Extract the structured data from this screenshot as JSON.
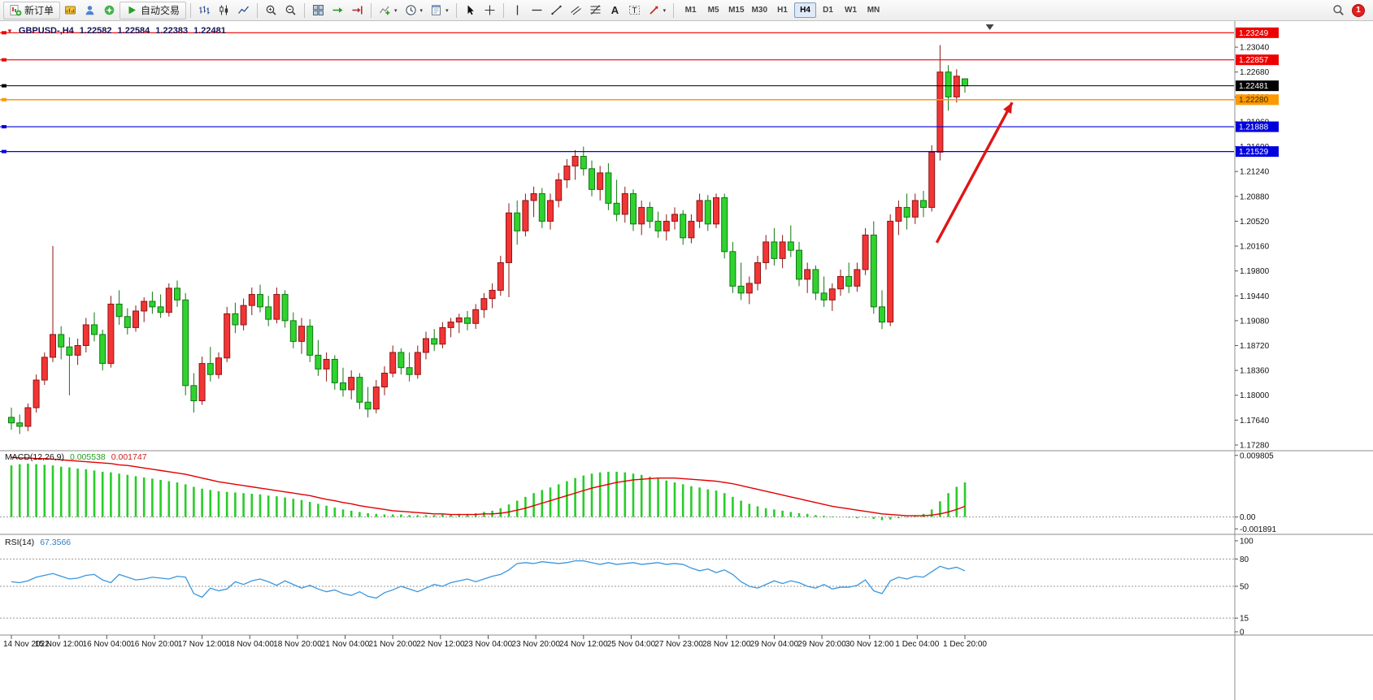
{
  "toolbar": {
    "new_order_label": "新订单",
    "auto_trading_label": "自动交易",
    "timeframes": [
      "M1",
      "M5",
      "M15",
      "M30",
      "H1",
      "H4",
      "D1",
      "W1",
      "MN"
    ],
    "active_timeframe": "H4",
    "notification_count": "1"
  },
  "chart_data": {
    "type": "candlestick",
    "title": "GBPUSD-,H4",
    "ohlc_readout": {
      "open": "1.22582",
      "high": "1.22584",
      "low": "1.22383",
      "close": "1.22481"
    },
    "up_color": "#f23535",
    "up_stroke": "#8d1616",
    "down_color": "#2fd32f",
    "down_stroke": "#117711",
    "panels": {
      "main": [
        1.23394,
        1.17209
      ],
      "macd": [
        0.01042,
        -0.0025
      ],
      "rsi": [
        105.3,
        -1.8
      ]
    },
    "price_axis": {
      "ticks": [
        1.2304,
        1.2268,
        1.2232,
        1.2196,
        1.216,
        1.2124,
        1.2088,
        1.2052,
        1.2016,
        1.198,
        1.1944,
        1.1908,
        1.1872,
        1.1836,
        1.18,
        1.1764,
        1.1728
      ],
      "decimals": 5
    },
    "time_labels": [
      "14 Nov 2022",
      "15 Nov 12:00",
      "16 Nov 04:00",
      "16 Nov 20:00",
      "17 Nov 12:00",
      "18 Nov 04:00",
      "18 Nov 20:00",
      "21 Nov 04:00",
      "21 Nov 20:00",
      "22 Nov 12:00",
      "23 Nov 04:00",
      "23 Nov 20:00",
      "24 Nov 12:00",
      "25 Nov 04:00",
      "27 Nov 23:00",
      "28 Nov 12:00",
      "29 Nov 04:00",
      "29 Nov 20:00",
      "30 Nov 12:00",
      "1 Dec 04:00",
      "1 Dec 20:00"
    ],
    "hlines": [
      {
        "price": 1.23249,
        "color": "#ee0000",
        "text_color": "#ffffff",
        "width": 1.2
      },
      {
        "price": 1.22857,
        "color": "#ee0000",
        "text_color": "#ffffff",
        "width": 1.2
      },
      {
        "price": 1.22481,
        "color": "#000000",
        "text_color": "#ffffff",
        "width": 1
      },
      {
        "price": 1.2228,
        "color": "#ff9900",
        "text_color": "#3a2a00",
        "width": 1.5
      },
      {
        "price": 1.21888,
        "color": "#0000dd",
        "text_color": "#ffffff",
        "width": 1.2
      },
      {
        "price": 1.21529,
        "color": "#0000dd",
        "text_color": "#ffffff",
        "width": 1.2
      }
    ],
    "trend_arrow": {
      "from_bar": 111.6,
      "from_price": 1.2021,
      "to_bar": 120.7,
      "to_price": 1.2224,
      "color": "#e01515",
      "width": 3.4
    },
    "shift_marker_bar": 118,
    "candles": [
      [
        1.1768,
        1.1782,
        1.175,
        1.176
      ],
      [
        1.176,
        1.1772,
        1.1744,
        1.1755
      ],
      [
        1.1755,
        1.1788,
        1.1748,
        1.1782
      ],
      [
        1.1782,
        1.183,
        1.1775,
        1.1822
      ],
      [
        1.1822,
        1.1862,
        1.1815,
        1.1855
      ],
      [
        1.1855,
        1.2016,
        1.1848,
        1.1888
      ],
      [
        1.1888,
        1.19,
        1.1852,
        1.187
      ],
      [
        1.187,
        1.1884,
        1.18,
        1.1858
      ],
      [
        1.1858,
        1.1882,
        1.1844,
        1.1872
      ],
      [
        1.1872,
        1.1912,
        1.1862,
        1.1902
      ],
      [
        1.1902,
        1.192,
        1.1878,
        1.1888
      ],
      [
        1.1888,
        1.1895,
        1.1836,
        1.1846
      ],
      [
        1.1846,
        1.1944,
        1.184,
        1.1932
      ],
      [
        1.1932,
        1.1952,
        1.1902,
        1.1914
      ],
      [
        1.1914,
        1.1926,
        1.1888,
        1.1898
      ],
      [
        1.1898,
        1.193,
        1.1892,
        1.1922
      ],
      [
        1.1922,
        1.1942,
        1.1906,
        1.1936
      ],
      [
        1.1936,
        1.195,
        1.1918,
        1.1928
      ],
      [
        1.1928,
        1.1946,
        1.1912,
        1.192
      ],
      [
        1.192,
        1.1962,
        1.1914,
        1.1955
      ],
      [
        1.1955,
        1.1966,
        1.1928,
        1.1938
      ],
      [
        1.1938,
        1.1948,
        1.18,
        1.1814
      ],
      [
        1.1814,
        1.1832,
        1.1775,
        1.1792
      ],
      [
        1.1792,
        1.1856,
        1.1786,
        1.1846
      ],
      [
        1.1846,
        1.187,
        1.182,
        1.183
      ],
      [
        1.183,
        1.1862,
        1.1824,
        1.1854
      ],
      [
        1.1854,
        1.1928,
        1.1848,
        1.1918
      ],
      [
        1.1918,
        1.1934,
        1.189,
        1.1902
      ],
      [
        1.1902,
        1.194,
        1.1894,
        1.193
      ],
      [
        1.193,
        1.1956,
        1.1916,
        1.1946
      ],
      [
        1.1946,
        1.196,
        1.192,
        1.1928
      ],
      [
        1.1928,
        1.1944,
        1.19,
        1.191
      ],
      [
        1.191,
        1.1956,
        1.1904,
        1.1946
      ],
      [
        1.1946,
        1.1952,
        1.1898,
        1.1908
      ],
      [
        1.1908,
        1.192,
        1.1868,
        1.1878
      ],
      [
        1.1878,
        1.1912,
        1.186,
        1.19
      ],
      [
        1.19,
        1.191,
        1.1848,
        1.1858
      ],
      [
        1.1858,
        1.188,
        1.1828,
        1.1838
      ],
      [
        1.1838,
        1.1862,
        1.182,
        1.1852
      ],
      [
        1.1852,
        1.1858,
        1.1808,
        1.1818
      ],
      [
        1.1818,
        1.184,
        1.1798,
        1.1808
      ],
      [
        1.1808,
        1.1836,
        1.1794,
        1.1826
      ],
      [
        1.1826,
        1.1832,
        1.178,
        1.179
      ],
      [
        1.179,
        1.1812,
        1.1768,
        1.178
      ],
      [
        1.178,
        1.1822,
        1.1774,
        1.1812
      ],
      [
        1.1812,
        1.1842,
        1.18,
        1.1832
      ],
      [
        1.1832,
        1.1872,
        1.1826,
        1.1862
      ],
      [
        1.1862,
        1.1868,
        1.183,
        1.184
      ],
      [
        1.184,
        1.1862,
        1.182,
        1.183
      ],
      [
        1.183,
        1.1872,
        1.1824,
        1.1862
      ],
      [
        1.1862,
        1.1892,
        1.1852,
        1.1882
      ],
      [
        1.1882,
        1.1896,
        1.1864,
        1.1874
      ],
      [
        1.1874,
        1.1906,
        1.1868,
        1.1898
      ],
      [
        1.1898,
        1.1912,
        1.1884,
        1.1906
      ],
      [
        1.1906,
        1.1918,
        1.189,
        1.1912
      ],
      [
        1.1912,
        1.1922,
        1.1894,
        1.1904
      ],
      [
        1.1904,
        1.1932,
        1.1896,
        1.1924
      ],
      [
        1.1924,
        1.1948,
        1.1912,
        1.194
      ],
      [
        1.194,
        1.1962,
        1.1926,
        1.1952
      ],
      [
        1.1952,
        1.2002,
        1.1944,
        1.1992
      ],
      [
        1.1992,
        1.2078,
        1.1942,
        1.2064
      ],
      [
        1.2064,
        1.2082,
        1.2018,
        1.2038
      ],
      [
        1.2038,
        1.2092,
        1.203,
        1.2082
      ],
      [
        1.2082,
        1.2102,
        1.2058,
        1.2092
      ],
      [
        1.2092,
        1.21,
        1.2042,
        1.2052
      ],
      [
        1.2052,
        1.2092,
        1.204,
        1.2082
      ],
      [
        1.2082,
        1.2122,
        1.2072,
        1.2112
      ],
      [
        1.2112,
        1.2142,
        1.21,
        1.2132
      ],
      [
        1.2132,
        1.2155,
        1.2112,
        1.2146
      ],
      [
        1.2146,
        1.216,
        1.2118,
        1.2128
      ],
      [
        1.2128,
        1.214,
        1.2088,
        1.2098
      ],
      [
        1.2098,
        1.2132,
        1.2082,
        1.2122
      ],
      [
        1.2122,
        1.2136,
        1.2068,
        1.2078
      ],
      [
        1.2078,
        1.2112,
        1.2052,
        1.2062
      ],
      [
        1.2062,
        1.2102,
        1.205,
        1.2092
      ],
      [
        1.2092,
        1.2098,
        1.2038,
        1.2048
      ],
      [
        1.2048,
        1.2082,
        1.2032,
        1.2072
      ],
      [
        1.2072,
        1.208,
        1.2042,
        1.2052
      ],
      [
        1.2052,
        1.2066,
        1.2028,
        1.2038
      ],
      [
        1.2038,
        1.2062,
        1.2024,
        1.2052
      ],
      [
        1.2052,
        1.2072,
        1.204,
        1.2062
      ],
      [
        1.2062,
        1.2068,
        1.2018,
        1.2028
      ],
      [
        1.2028,
        1.2062,
        1.202,
        1.2052
      ],
      [
        1.2052,
        1.2092,
        1.2042,
        1.2082
      ],
      [
        1.2082,
        1.209,
        1.2038,
        1.2048
      ],
      [
        1.2048,
        1.2092,
        1.2042,
        1.2086
      ],
      [
        1.2086,
        1.2092,
        1.1998,
        1.2008
      ],
      [
        1.2008,
        1.2022,
        1.1948,
        1.1958
      ],
      [
        1.1958,
        1.1992,
        1.1938,
        1.1948
      ],
      [
        1.1948,
        1.1972,
        1.1932,
        1.1962
      ],
      [
        1.1962,
        1.2002,
        1.1952,
        1.1992
      ],
      [
        1.1992,
        1.2032,
        1.1982,
        1.2022
      ],
      [
        1.2022,
        1.2042,
        1.1988,
        1.1998
      ],
      [
        1.1998,
        1.2032,
        1.1984,
        1.2022
      ],
      [
        1.2022,
        1.2046,
        1.2,
        1.201
      ],
      [
        1.201,
        1.2022,
        1.1958,
        1.1968
      ],
      [
        1.1968,
        1.1992,
        1.1948,
        1.1982
      ],
      [
        1.1982,
        1.1988,
        1.1938,
        1.1948
      ],
      [
        1.1948,
        1.1972,
        1.1928,
        1.1938
      ],
      [
        1.1938,
        1.1962,
        1.1922,
        1.1954
      ],
      [
        1.1954,
        1.1982,
        1.1944,
        1.1972
      ],
      [
        1.1972,
        1.1992,
        1.1948,
        1.1958
      ],
      [
        1.1958,
        1.1992,
        1.195,
        1.1982
      ],
      [
        1.1982,
        1.2042,
        1.1974,
        1.2032
      ],
      [
        1.2032,
        1.2052,
        1.1918,
        1.1928
      ],
      [
        1.1928,
        1.1952,
        1.1896,
        1.1906
      ],
      [
        1.1906,
        1.2062,
        1.19,
        1.2052
      ],
      [
        1.2052,
        1.2082,
        1.2032,
        1.2072
      ],
      [
        1.2072,
        1.2092,
        1.204,
        1.2058
      ],
      [
        1.2058,
        1.2092,
        1.2048,
        1.2082
      ],
      [
        1.2082,
        1.2096,
        1.2058,
        1.2072
      ],
      [
        1.2072,
        1.2162,
        1.2066,
        1.2152
      ],
      [
        1.2152,
        1.2307,
        1.214,
        1.2268
      ],
      [
        1.2268,
        1.2278,
        1.2212,
        1.2232
      ],
      [
        1.2232,
        1.2272,
        1.2224,
        1.2262
      ],
      [
        1.22582,
        1.22584,
        1.22383,
        1.22481
      ]
    ],
    "macd": {
      "name": "MACD(12,26,9)",
      "value_main": "0.005538",
      "value_signal": "0.001747",
      "histogram_color": "#29cc29",
      "signal_color": "#e00000",
      "ticks": [
        {
          "v": 0.009805,
          "label": "0.009805"
        },
        {
          "v": 0,
          "label": "0.00"
        },
        {
          "v": -0.001891,
          "label": "-0.001891"
        }
      ],
      "histogram": [
        0.0082,
        0.0084,
        0.0085,
        0.0084,
        0.0083,
        0.0082,
        0.008,
        0.0079,
        0.0077,
        0.0076,
        0.0074,
        0.0072,
        0.0071,
        0.0069,
        0.0067,
        0.0065,
        0.0063,
        0.0061,
        0.0059,
        0.0057,
        0.0055,
        0.0052,
        0.0048,
        0.0045,
        0.0043,
        0.0041,
        0.004,
        0.0039,
        0.0038,
        0.0037,
        0.0036,
        0.0034,
        0.0033,
        0.0031,
        0.0029,
        0.0027,
        0.0024,
        0.0021,
        0.0018,
        0.0015,
        0.0012,
        0.001,
        0.0008,
        0.0006,
        0.0005,
        0.0004,
        0.0004,
        0.0004,
        0.0003,
        0.0003,
        0.0003,
        0.0003,
        0.0004,
        0.0004,
        0.0005,
        0.0005,
        0.0006,
        0.0008,
        0.001,
        0.0014,
        0.002,
        0.0026,
        0.0032,
        0.0038,
        0.0043,
        0.0047,
        0.0052,
        0.0057,
        0.0062,
        0.0066,
        0.0069,
        0.0071,
        0.0072,
        0.0072,
        0.0071,
        0.0069,
        0.0067,
        0.0064,
        0.0061,
        0.0058,
        0.0055,
        0.0052,
        0.0049,
        0.0047,
        0.0044,
        0.0042,
        0.0038,
        0.0032,
        0.0026,
        0.0021,
        0.0017,
        0.0014,
        0.0012,
        0.001,
        0.0008,
        0.0006,
        0.0005,
        0.0003,
        0.0002,
        0.0001,
        0.0,
        -0.0001,
        -0.0002,
        -0.0001,
        -0.0003,
        -0.0005,
        -0.0004,
        -0.0002,
        -0.0001,
        0.0002,
        0.0005,
        0.0012,
        0.0025,
        0.0038,
        0.0048,
        0.0055
      ],
      "signal": [
        0.0095,
        0.0094,
        0.0094,
        0.0093,
        0.0093,
        0.0092,
        0.0091,
        0.009,
        0.0089,
        0.0088,
        0.0087,
        0.0086,
        0.0085,
        0.0083,
        0.0082,
        0.008,
        0.0078,
        0.0076,
        0.0074,
        0.0072,
        0.007,
        0.0068,
        0.0065,
        0.0062,
        0.0059,
        0.0056,
        0.0054,
        0.0052,
        0.005,
        0.0048,
        0.0046,
        0.0044,
        0.0042,
        0.004,
        0.0038,
        0.0036,
        0.0034,
        0.0031,
        0.0028,
        0.0026,
        0.0023,
        0.0021,
        0.0018,
        0.0016,
        0.0014,
        0.0012,
        0.001,
        0.0009,
        0.0008,
        0.0007,
        0.0006,
        0.0005,
        0.0005,
        0.0004,
        0.0004,
        0.0004,
        0.0004,
        0.0005,
        0.0005,
        0.0006,
        0.0008,
        0.0011,
        0.0014,
        0.0018,
        0.0022,
        0.0026,
        0.003,
        0.0034,
        0.0038,
        0.0042,
        0.0046,
        0.0049,
        0.0052,
        0.0055,
        0.0057,
        0.0059,
        0.006,
        0.0061,
        0.0062,
        0.0062,
        0.0062,
        0.0061,
        0.006,
        0.0059,
        0.0058,
        0.0057,
        0.0055,
        0.0053,
        0.005,
        0.0047,
        0.0044,
        0.0041,
        0.0038,
        0.0035,
        0.0032,
        0.0029,
        0.0026,
        0.0023,
        0.002,
        0.0017,
        0.0015,
        0.0013,
        0.0011,
        0.0009,
        0.0007,
        0.0005,
        0.0004,
        0.0003,
        0.0002,
        0.0002,
        0.0002,
        0.0003,
        0.0005,
        0.0008,
        0.0012,
        0.0017
      ]
    },
    "rsi": {
      "name": "RSI(14)",
      "value": "67.3566",
      "line_color": "#3a96dd",
      "levels": [
        80,
        50,
        15
      ],
      "ticks": [
        {
          "v": 100,
          "label": "100"
        },
        {
          "v": 80,
          "label": "80"
        },
        {
          "v": 50,
          "label": "50"
        },
        {
          "v": 15,
          "label": "15"
        },
        {
          "v": 0,
          "label": "0"
        }
      ],
      "values": [
        55,
        54,
        56,
        60,
        62,
        64,
        61,
        58,
        59,
        62,
        63,
        57,
        54,
        63,
        60,
        57,
        58,
        60,
        59,
        58,
        61,
        60,
        42,
        38,
        48,
        45,
        47,
        55,
        52,
        56,
        58,
        55,
        51,
        56,
        52,
        48,
        51,
        47,
        44,
        46,
        42,
        40,
        44,
        39,
        37,
        43,
        46,
        50,
        47,
        44,
        48,
        52,
        50,
        54,
        56,
        58,
        55,
        58,
        61,
        63,
        68,
        75,
        76,
        75,
        77,
        76,
        75,
        76,
        78,
        78,
        76,
        74,
        76,
        74,
        75,
        76,
        74,
        75,
        76,
        74,
        75,
        74,
        70,
        67,
        69,
        65,
        68,
        63,
        55,
        50,
        48,
        52,
        56,
        53,
        56,
        54,
        50,
        48,
        52,
        47,
        49,
        49,
        51,
        57,
        45,
        42,
        56,
        60,
        58,
        61,
        60,
        66,
        72,
        69,
        71,
        67
      ]
    }
  }
}
